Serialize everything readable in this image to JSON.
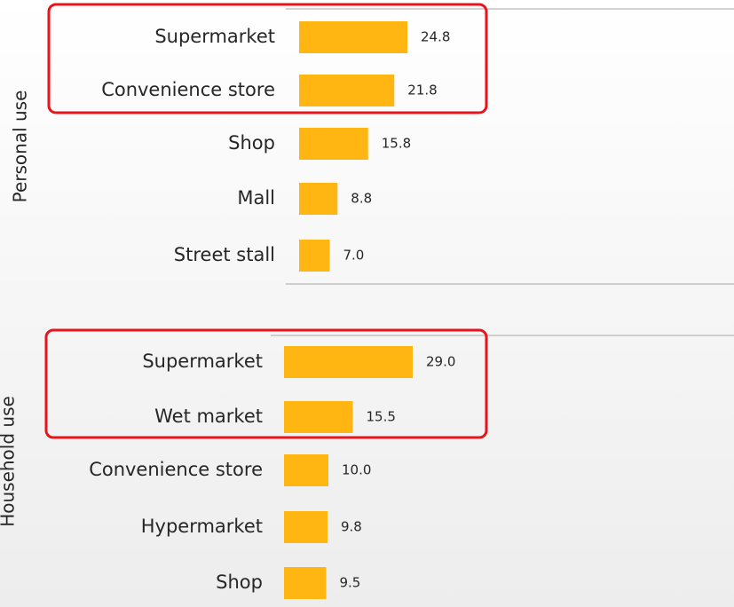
{
  "chart_data": [
    {
      "type": "bar",
      "orientation": "horizontal",
      "ylabel": "Personal use",
      "categories": [
        "Supermarket",
        "Convenience store",
        "Shop",
        "Mall",
        "Street stall"
      ],
      "values": [
        24.8,
        21.8,
        15.8,
        8.8,
        7.0
      ],
      "value_labels": [
        "24.8",
        "21.8",
        "15.8",
        "8.8",
        "7.0"
      ],
      "color": "#ffb612"
    },
    {
      "type": "bar",
      "orientation": "horizontal",
      "ylabel": "Household use",
      "categories": [
        "Supermarket",
        "Wet market",
        "Convenience store",
        "Hypermarket",
        "Shop"
      ],
      "values": [
        29.0,
        15.5,
        10.0,
        9.8,
        9.5
      ],
      "value_labels": [
        "29.0",
        "15.5",
        "10.0",
        "9.8",
        "9.5"
      ],
      "color": "#ffb612"
    }
  ]
}
